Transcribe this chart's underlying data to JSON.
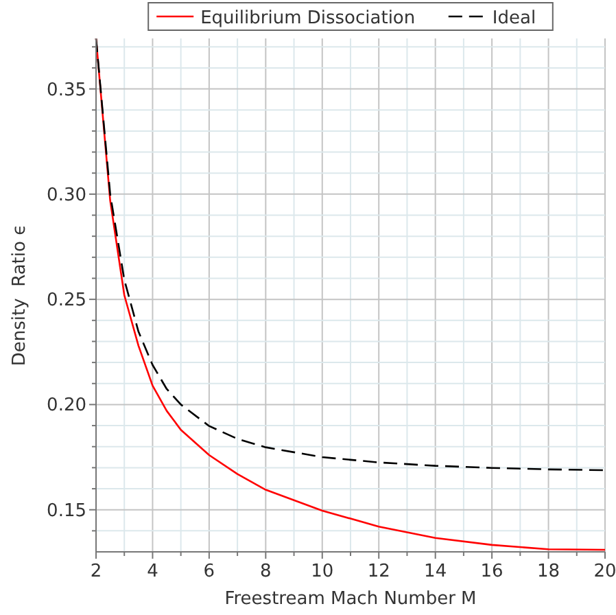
{
  "chart_data": {
    "type": "line",
    "xlabel": "Freestream Mach Number M",
    "ylabel": "Density  Ratio ϵ",
    "legend": "top",
    "grid": true,
    "xlim": [
      2,
      20
    ],
    "ylim": [
      0.13,
      0.374
    ],
    "xticks": [
      2,
      {
        "value": 3,
        "label": null
      },
      4,
      {
        "value": 5,
        "label": null
      },
      6,
      {
        "value": 7,
        "label": null
      },
      8,
      {
        "value": 9,
        "label": null
      },
      10,
      {
        "value": 11,
        "label": null
      },
      12,
      {
        "value": 13,
        "label": null
      },
      14,
      {
        "value": 15,
        "label": null
      },
      16,
      {
        "value": 17,
        "label": null
      },
      18,
      {
        "value": 19,
        "label": null
      },
      20
    ],
    "yticks": [
      {
        "value": 0.14,
        "label": null
      },
      {
        "value": 0.15,
        "label": "0.15"
      },
      {
        "value": 0.16,
        "label": null
      },
      {
        "value": 0.17,
        "label": null
      },
      {
        "value": 0.18,
        "label": null
      },
      {
        "value": 0.19,
        "label": null
      },
      {
        "value": 0.2,
        "label": "0.20"
      },
      {
        "value": 0.21,
        "label": null
      },
      {
        "value": 0.22,
        "label": null
      },
      {
        "value": 0.23,
        "label": null
      },
      {
        "value": 0.24,
        "label": null
      },
      {
        "value": 0.25,
        "label": "0.25"
      },
      {
        "value": 0.26,
        "label": null
      },
      {
        "value": 0.27,
        "label": null
      },
      {
        "value": 0.28,
        "label": null
      },
      {
        "value": 0.29,
        "label": null
      },
      {
        "value": 0.3,
        "label": "0.30"
      },
      {
        "value": 0.31,
        "label": null
      },
      {
        "value": 0.32,
        "label": null
      },
      {
        "value": 0.33,
        "label": null
      },
      {
        "value": 0.34,
        "label": null
      },
      {
        "value": 0.35,
        "label": "0.35"
      },
      {
        "value": 0.36,
        "label": null
      },
      {
        "value": 0.37,
        "label": null
      }
    ],
    "x": [
      2,
      2.5,
      3,
      3.5,
      4,
      4.5,
      5,
      6,
      7,
      8,
      10,
      12,
      14,
      16,
      18,
      20
    ],
    "series": [
      {
        "name": "Equilibrium Dissociation",
        "color": "#ff0000",
        "line_style": "solid",
        "values": [
          0.374,
          0.297,
          0.252,
          0.228,
          0.209,
          0.197,
          0.188,
          0.176,
          0.167,
          0.1595,
          0.1496,
          0.142,
          0.1366,
          0.1333,
          0.1312,
          0.131
        ]
      },
      {
        "name": "Ideal",
        "color": "#000000",
        "line_style": "dashed",
        "values": [
          0.374,
          0.3,
          0.2593,
          0.2347,
          0.2188,
          0.2074,
          0.2,
          0.1898,
          0.1837,
          0.1797,
          0.175,
          0.1725,
          0.1709,
          0.1699,
          0.1692,
          0.1688
        ]
      }
    ]
  }
}
